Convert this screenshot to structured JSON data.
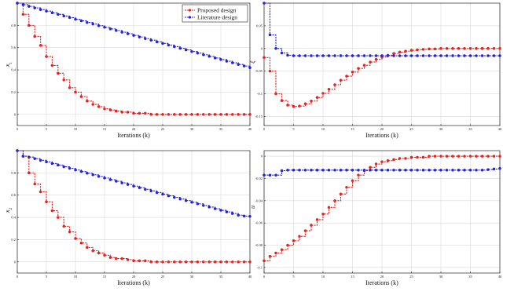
{
  "chart_data": [
    {
      "type": "line",
      "ylabel": "x1",
      "xlabel": "Iterations (k)",
      "xlim": [
        0,
        40
      ],
      "ylim": [
        -0.1,
        1.0
      ],
      "xticks": [
        0,
        5,
        10,
        15,
        20,
        25,
        30,
        35,
        40
      ],
      "yticks": [
        0,
        0.2,
        0.4,
        0.6,
        0.8
      ],
      "ytick_labels": [
        "0",
        "0.2",
        "0.4",
        "0.6",
        "0.8"
      ],
      "grid": true,
      "step": true,
      "legend": "top-right",
      "series": [
        {
          "name": "Proposed design",
          "color": "#e8201e",
          "marker": "circle",
          "values": [
            1.0,
            0.9,
            0.8,
            0.7,
            0.62,
            0.52,
            0.44,
            0.37,
            0.31,
            0.24,
            0.2,
            0.16,
            0.12,
            0.09,
            0.07,
            0.05,
            0.04,
            0.03,
            0.02,
            0.02,
            0.01,
            0.01,
            0.01,
            0.0,
            0.0,
            0.0,
            0.0,
            0.0,
            0.0,
            0.0,
            0.0,
            0.0,
            0.0,
            0.0,
            0.0,
            0.0,
            0.0,
            0.0,
            0.0,
            0.0,
            0.0
          ]
        },
        {
          "name": "Literature design",
          "color": "#2222dd",
          "marker": "circle",
          "values": [
            1.0,
            0.986,
            0.971,
            0.957,
            0.942,
            0.928,
            0.913,
            0.899,
            0.884,
            0.87,
            0.855,
            0.841,
            0.826,
            0.812,
            0.797,
            0.783,
            0.768,
            0.754,
            0.739,
            0.725,
            0.71,
            0.696,
            0.681,
            0.667,
            0.652,
            0.638,
            0.623,
            0.609,
            0.594,
            0.58,
            0.565,
            0.551,
            0.536,
            0.522,
            0.507,
            0.493,
            0.478,
            0.464,
            0.449,
            0.435,
            0.42
          ]
        }
      ]
    },
    {
      "type": "line",
      "ylabel": "ξ",
      "xlabel": "Iterations (k)",
      "xlim": [
        0,
        40
      ],
      "ylim": [
        -0.17,
        0.1
      ],
      "xticks": [
        0,
        5,
        10,
        15,
        20,
        25,
        30,
        35,
        40
      ],
      "yticks": [
        -0.15,
        -0.1,
        -0.05,
        0,
        0.05
      ],
      "ytick_labels": [
        "-0.15",
        "-0.1",
        "-0.05",
        "0",
        "0.05"
      ],
      "grid": true,
      "step": true,
      "series": [
        {
          "name": "Proposed design",
          "color": "#e8201e",
          "marker": "circle",
          "values": [
            -0.02,
            -0.05,
            -0.1,
            -0.115,
            -0.125,
            -0.128,
            -0.127,
            -0.122,
            -0.116,
            -0.108,
            -0.099,
            -0.09,
            -0.08,
            -0.07,
            -0.061,
            -0.052,
            -0.044,
            -0.037,
            -0.03,
            -0.024,
            -0.019,
            -0.015,
            -0.011,
            -0.008,
            -0.006,
            -0.004,
            -0.003,
            -0.002,
            -0.001,
            -0.001,
            0.0,
            0.0,
            0.0,
            0.0,
            0.0,
            0.0,
            0.0,
            0.0,
            0.0,
            0.0,
            0.0
          ]
        },
        {
          "name": "Literature design",
          "color": "#2222dd",
          "marker": "circle",
          "values": [
            0.1,
            0.03,
            0.0,
            -0.01,
            -0.015,
            -0.016,
            -0.016,
            -0.016,
            -0.016,
            -0.016,
            -0.016,
            -0.016,
            -0.016,
            -0.016,
            -0.016,
            -0.016,
            -0.016,
            -0.016,
            -0.016,
            -0.016,
            -0.016,
            -0.016,
            -0.016,
            -0.016,
            -0.016,
            -0.016,
            -0.016,
            -0.016,
            -0.016,
            -0.016,
            -0.016,
            -0.016,
            -0.016,
            -0.016,
            -0.016,
            -0.016,
            -0.016,
            -0.016,
            -0.016,
            -0.016,
            -0.016
          ]
        }
      ]
    },
    {
      "type": "line",
      "ylabel": "x2",
      "xlabel": "Iterations (k)",
      "xlim": [
        0,
        40
      ],
      "ylim": [
        -0.1,
        1.0
      ],
      "xticks": [
        0,
        5,
        10,
        15,
        20,
        25,
        30,
        35,
        40
      ],
      "yticks": [
        0,
        0.2,
        0.4,
        0.6,
        0.8
      ],
      "ytick_labels": [
        "0",
        "0.2",
        "0.4",
        "0.6",
        "0.8"
      ],
      "grid": true,
      "step": true,
      "series": [
        {
          "name": "Proposed design",
          "color": "#e8201e",
          "marker": "circle",
          "values": [
            1.0,
            0.95,
            0.8,
            0.7,
            0.63,
            0.54,
            0.46,
            0.4,
            0.32,
            0.27,
            0.21,
            0.17,
            0.13,
            0.1,
            0.08,
            0.06,
            0.04,
            0.03,
            0.03,
            0.02,
            0.01,
            0.01,
            0.01,
            0.0,
            0.0,
            0.0,
            0.0,
            0.0,
            0.0,
            0.0,
            0.0,
            0.0,
            0.0,
            0.0,
            0.0,
            0.0,
            0.0,
            0.0,
            0.0,
            0.0,
            0.0
          ]
        },
        {
          "name": "Literature design",
          "color": "#2222dd",
          "marker": "circle",
          "values": [
            1.0,
            0.95,
            0.942,
            0.928,
            0.913,
            0.899,
            0.884,
            0.87,
            0.855,
            0.841,
            0.826,
            0.812,
            0.797,
            0.783,
            0.768,
            0.754,
            0.739,
            0.725,
            0.71,
            0.696,
            0.681,
            0.667,
            0.652,
            0.638,
            0.623,
            0.609,
            0.594,
            0.58,
            0.565,
            0.551,
            0.536,
            0.522,
            0.507,
            0.493,
            0.478,
            0.464,
            0.449,
            0.435,
            0.42,
            0.412,
            0.41
          ]
        }
      ]
    },
    {
      "type": "line",
      "ylabel": "u",
      "xlabel": "Iterations (k)",
      "xlim": [
        0,
        40
      ],
      "ylim": [
        -0.105,
        0.005
      ],
      "xticks": [
        0,
        5,
        10,
        15,
        20,
        25,
        30,
        35,
        40
      ],
      "yticks": [
        -0.1,
        -0.08,
        -0.06,
        -0.04,
        -0.02,
        0
      ],
      "ytick_labels": [
        "-0.1",
        "-0.08",
        "-0.06",
        "-0.04",
        "-0.02",
        "0"
      ],
      "grid": true,
      "step": true,
      "series": [
        {
          "name": "Proposed design",
          "color": "#e8201e",
          "marker": "circle",
          "values": [
            -0.094,
            -0.09,
            -0.087,
            -0.084,
            -0.08,
            -0.076,
            -0.072,
            -0.067,
            -0.062,
            -0.057,
            -0.052,
            -0.046,
            -0.04,
            -0.034,
            -0.028,
            -0.022,
            -0.017,
            -0.013,
            -0.01,
            -0.007,
            -0.005,
            -0.004,
            -0.003,
            -0.002,
            -0.002,
            -0.001,
            -0.001,
            -0.001,
            0.0,
            0.0,
            0.0,
            0.0,
            0.0,
            0.0,
            0.0,
            0.0,
            0.0,
            0.0,
            0.0,
            0.0,
            0.0
          ]
        },
        {
          "name": "Literature design",
          "color": "#2222dd",
          "marker": "circle",
          "values": [
            -0.017,
            -0.017,
            -0.017,
            -0.013,
            -0.0125,
            -0.0125,
            -0.0125,
            -0.0125,
            -0.0125,
            -0.0125,
            -0.0125,
            -0.0125,
            -0.0125,
            -0.0125,
            -0.0125,
            -0.0125,
            -0.0125,
            -0.0125,
            -0.0125,
            -0.0125,
            -0.0125,
            -0.0125,
            -0.0125,
            -0.0125,
            -0.0125,
            -0.0125,
            -0.0125,
            -0.0125,
            -0.0125,
            -0.0125,
            -0.0125,
            -0.0125,
            -0.0125,
            -0.0125,
            -0.0125,
            -0.0125,
            -0.0125,
            -0.0125,
            -0.012,
            -0.0115,
            -0.011
          ]
        }
      ]
    }
  ]
}
